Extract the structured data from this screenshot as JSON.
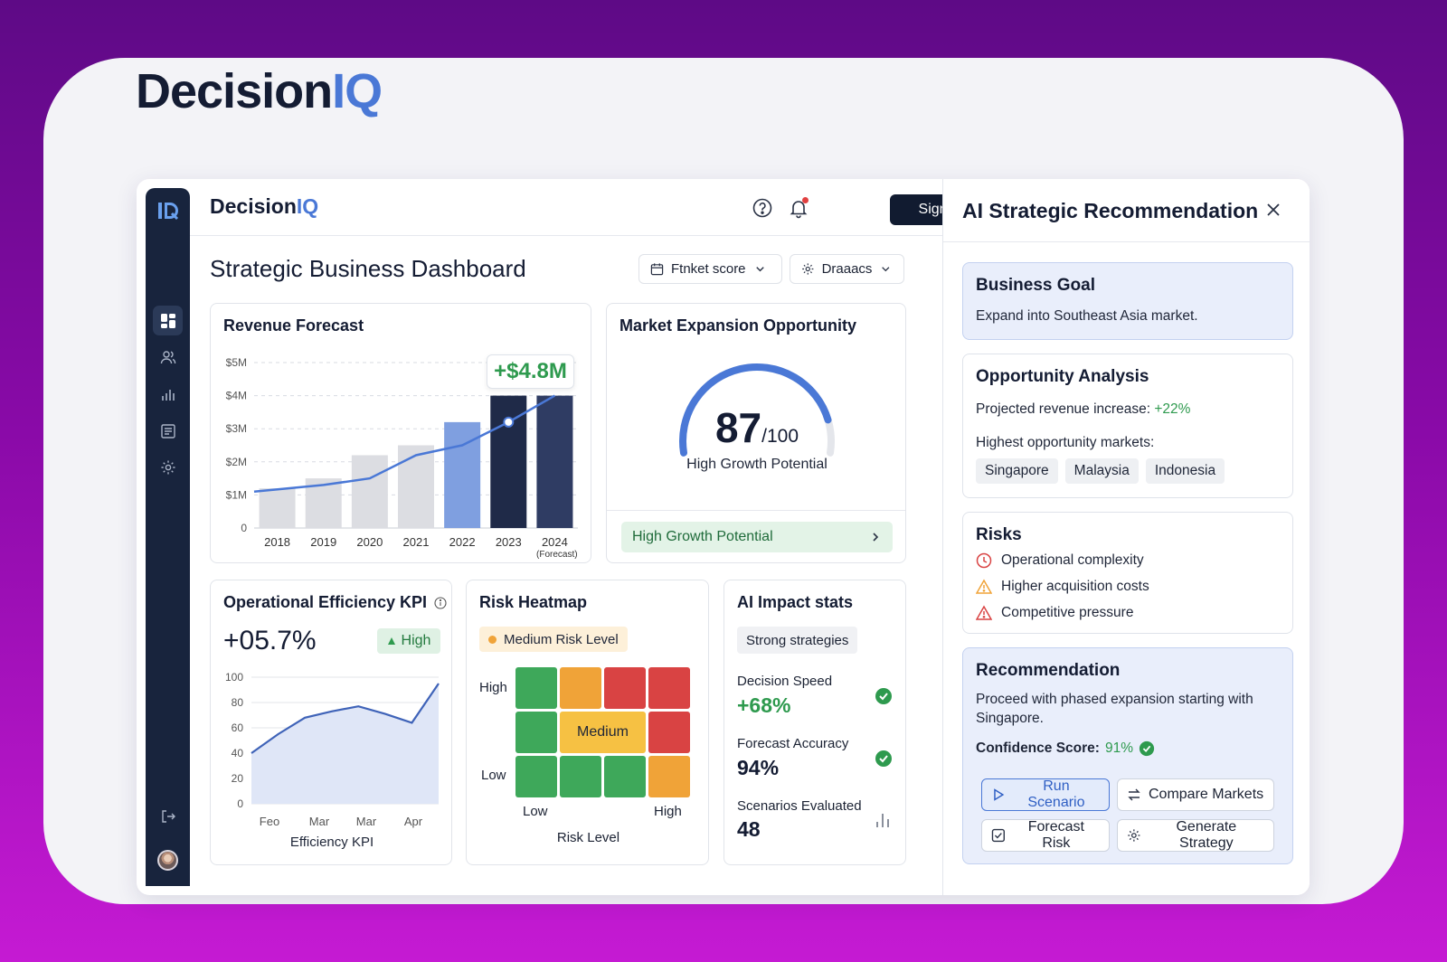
{
  "brand": {
    "prefix": "Decision",
    "suffix": "IQ"
  },
  "header": {
    "sign_in": "Sign in"
  },
  "page": {
    "title": "Strategic Business Dashboard",
    "dropdown_1": "Ftnket score",
    "dropdown_2": "Draaacs"
  },
  "sidebar": {
    "items": [
      "dashboard-icon",
      "users-icon",
      "analytics-icon",
      "reports-icon",
      "settings-icon"
    ],
    "bottom": [
      "logout-icon",
      "avatar"
    ]
  },
  "revenue": {
    "title": "Revenue Forecast",
    "callout": "+$4.8M",
    "forecast_note": "(Forecast)"
  },
  "market": {
    "title": "Market Expansion Opportunity",
    "score": "87",
    "score_max": "/100",
    "gauge_label": "High Growth Potential",
    "banner": "High Growth Potential",
    "score_value": 87
  },
  "kpi": {
    "title": "Operational Efficiency KPI",
    "value": "+05.7%",
    "badge": "High",
    "xlabel": "Efficiency KPI"
  },
  "heatmap": {
    "title": "Risk Heatmap",
    "badge": "Medium Risk Level",
    "y_high": "High",
    "y_low": "Low",
    "x_low": "Low",
    "x_high": "High",
    "xlabel": "Risk Level",
    "center_label": "Medium",
    "colors": {
      "green": "#3ea85a",
      "orange": "#f0a338",
      "red": "#d94343",
      "yellow": "#f6c143"
    },
    "grid": [
      [
        "green",
        "orange",
        "red",
        "red"
      ],
      [
        "green",
        "yellow",
        "yellow",
        "red"
      ],
      [
        "green",
        "green",
        "green",
        "orange"
      ]
    ]
  },
  "ai_stats": {
    "title": "AI Impact stats",
    "chip": "Strong strategies",
    "speed_label": "Decision Speed",
    "speed_value": "+68%",
    "accuracy_label": "Forecast Accuracy",
    "accuracy_value": "94%",
    "scenarios_label": "Scenarios Evaluated",
    "scenarios_value": "48"
  },
  "panel": {
    "title": "AI Strategic Recommendation",
    "goal_title": "Business Goal",
    "goal_text": "Expand into Southeast Asia market.",
    "opp_title": "Opportunity Analysis",
    "opp_revenue_label": "Projected revenue increase:",
    "opp_revenue_value": "+22%",
    "opp_markets_label": "Highest opportunity markets:",
    "markets": [
      "Singapore",
      "Malaysia",
      "Indonesia"
    ],
    "risks_title": "Risks",
    "risks": [
      "Operational complexity",
      "Higher acquisition costs",
      "Competitive pressure"
    ],
    "rec_title": "Recommendation",
    "rec_text": "Proceed with phased expansion starting with Singapore.",
    "confidence_label": "Confidence Score:",
    "confidence_value": "91%",
    "actions": [
      "Run Scenario",
      "Compare Markets",
      "Forecast Risk",
      "Generate Strategy"
    ]
  },
  "colors": {
    "accent": "#4a78d6",
    "navy": "#18243d",
    "success": "#2e9a4e"
  },
  "chart_data": [
    {
      "type": "bar",
      "title": "Revenue Forecast",
      "categories": [
        "2018",
        "2019",
        "2020",
        "2021",
        "2022",
        "2023",
        "2024"
      ],
      "values": [
        1.2,
        1.5,
        2.2,
        2.5,
        3.2,
        4.0,
        4.0
      ],
      "line": [
        1.1,
        1.3,
        1.5,
        2.2,
        2.5,
        3.2,
        4.0
      ],
      "y_ticks": [
        "0",
        "$1M",
        "$2M",
        "$3M",
        "$4M",
        "$5M"
      ],
      "ylim": [
        0,
        5
      ],
      "bar_colors": [
        "#dcdde2",
        "#dcdde2",
        "#dcdde2",
        "#dcdde2",
        "#7f9fe0",
        "#1f2a48",
        "#2f3c63"
      ],
      "grid": true
    },
    {
      "type": "area",
      "title": "Operational Efficiency KPI",
      "categories": [
        "Feo",
        "Mar",
        "Mar",
        "Apr"
      ],
      "x": [
        0,
        1,
        2,
        3,
        4,
        5,
        6,
        7
      ],
      "values": [
        40,
        55,
        68,
        73,
        77,
        71,
        64,
        95
      ],
      "y_ticks": [
        "0",
        "20",
        "40",
        "60",
        "80",
        "100"
      ],
      "ylim": [
        0,
        100
      ],
      "xlabel": "Efficiency KPI",
      "grid": true
    }
  ]
}
